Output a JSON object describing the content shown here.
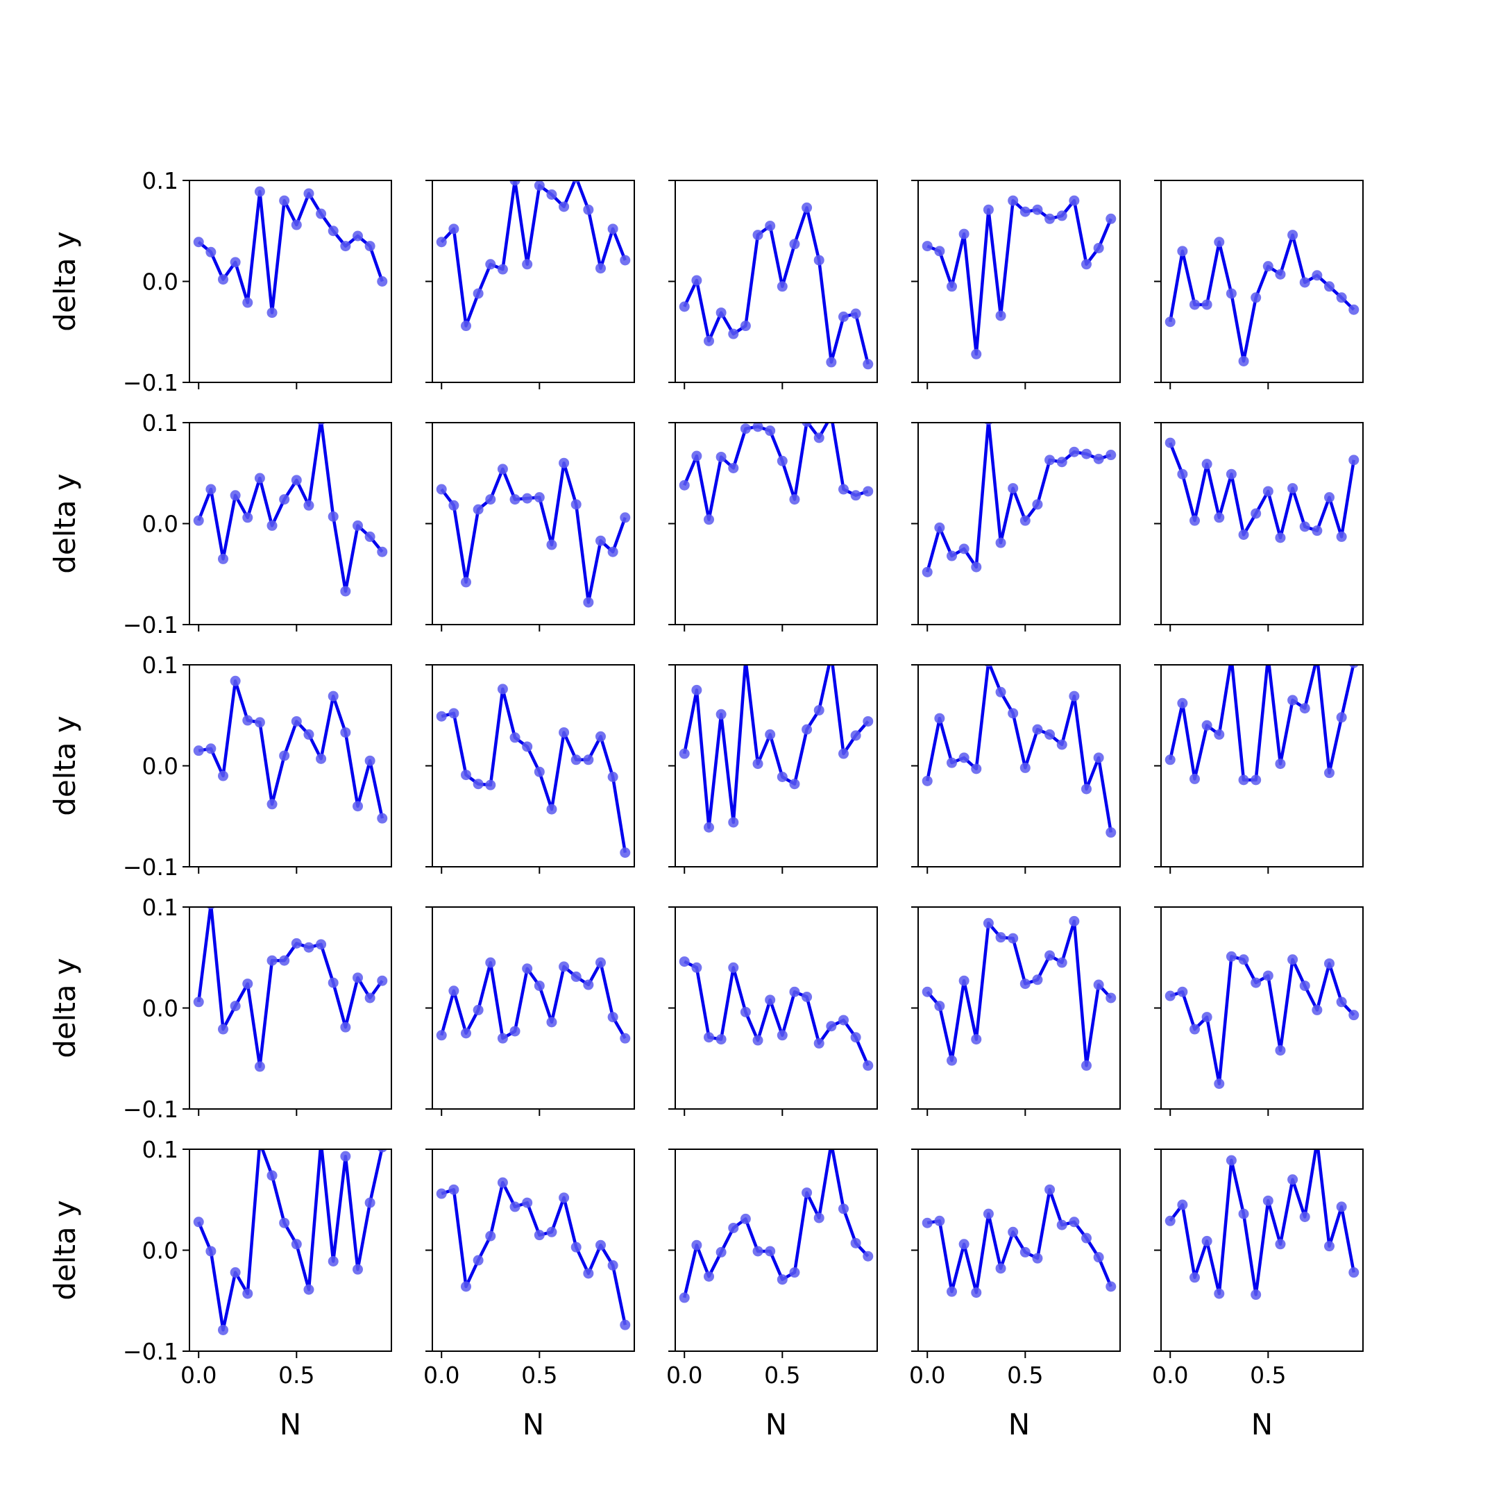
{
  "chart_data": {
    "type": "line",
    "grid": false,
    "nrows": 5,
    "ncols": 5,
    "xlabel": "N",
    "ylabel": "delta y",
    "xlim": [
      -0.0469,
      0.9844
    ],
    "ylim": [
      -0.1,
      0.1
    ],
    "xticks": [
      0.0,
      0.5
    ],
    "xtick_labels": [
      "0.0",
      "0.5"
    ],
    "yticks": [
      -0.1,
      0.0,
      0.1
    ],
    "ytick_labels": [
      "−0.1",
      "0.0",
      "0.1"
    ],
    "colors": {
      "line": "#0000ee",
      "marker": "#5a5aee"
    },
    "x": [
      0.0,
      0.0625,
      0.125,
      0.1875,
      0.25,
      0.3125,
      0.375,
      0.4375,
      0.5,
      0.5625,
      0.625,
      0.6875,
      0.75,
      0.8125,
      0.875,
      0.9375
    ],
    "panels": [
      {
        "values": [
          0.039,
          0.029,
          0.002,
          0.019,
          -0.021,
          0.089,
          -0.031,
          0.08,
          0.056,
          0.087,
          0.067,
          0.05,
          0.035,
          0.045,
          0.035,
          0.0
        ]
      },
      {
        "values": [
          0.039,
          0.052,
          -0.044,
          -0.012,
          0.017,
          0.012,
          0.1,
          0.017,
          0.095,
          0.086,
          0.074,
          0.103,
          0.071,
          0.013,
          0.052,
          0.021
        ]
      },
      {
        "values": [
          -0.025,
          0.001,
          -0.059,
          -0.031,
          -0.052,
          -0.044,
          0.046,
          0.055,
          -0.005,
          0.037,
          0.073,
          0.021,
          -0.08,
          -0.035,
          -0.032,
          -0.082
        ]
      },
      {
        "values": [
          0.035,
          0.03,
          -0.005,
          0.047,
          -0.072,
          0.071,
          -0.034,
          0.08,
          0.069,
          0.071,
          0.062,
          0.065,
          0.08,
          0.017,
          0.033,
          0.062
        ]
      },
      {
        "values": [
          -0.04,
          0.03,
          -0.023,
          -0.023,
          0.039,
          -0.012,
          -0.079,
          -0.016,
          0.015,
          0.007,
          0.046,
          -0.001,
          0.006,
          -0.005,
          -0.016,
          -0.028
        ]
      },
      {
        "values": [
          0.003,
          0.034,
          -0.035,
          0.028,
          0.006,
          0.045,
          -0.002,
          0.024,
          0.043,
          0.018,
          0.103,
          0.007,
          -0.067,
          -0.002,
          -0.013,
          -0.028
        ]
      },
      {
        "values": [
          0.034,
          0.018,
          -0.058,
          0.014,
          0.024,
          0.054,
          0.024,
          0.025,
          0.026,
          -0.021,
          0.06,
          0.019,
          -0.078,
          -0.017,
          -0.028,
          0.006
        ]
      },
      {
        "values": [
          0.038,
          0.067,
          0.004,
          0.066,
          0.055,
          0.094,
          0.096,
          0.092,
          0.062,
          0.024,
          0.101,
          0.085,
          0.107,
          0.034,
          0.028,
          0.032
        ]
      },
      {
        "values": [
          -0.048,
          -0.004,
          -0.032,
          -0.025,
          -0.043,
          0.103,
          -0.019,
          0.035,
          0.003,
          0.019,
          0.063,
          0.061,
          0.071,
          0.069,
          0.064,
          0.068
        ]
      },
      {
        "values": [
          0.08,
          0.049,
          0.003,
          0.059,
          0.006,
          0.049,
          -0.011,
          0.01,
          0.032,
          -0.014,
          0.035,
          -0.003,
          -0.007,
          0.026,
          -0.013,
          0.063
        ]
      },
      {
        "values": [
          0.015,
          0.017,
          -0.01,
          0.084,
          0.045,
          0.043,
          -0.038,
          0.01,
          0.044,
          0.031,
          0.007,
          0.069,
          0.033,
          -0.04,
          0.005,
          -0.052
        ]
      },
      {
        "values": [
          0.049,
          0.052,
          -0.009,
          -0.018,
          -0.019,
          0.076,
          0.028,
          0.019,
          -0.006,
          -0.043,
          0.033,
          0.006,
          0.006,
          0.029,
          -0.011,
          -0.086
        ]
      },
      {
        "values": [
          0.012,
          0.075,
          -0.061,
          0.051,
          -0.056,
          0.105,
          0.002,
          0.031,
          -0.011,
          -0.018,
          0.036,
          0.055,
          0.11,
          0.012,
          0.03,
          0.044
        ]
      },
      {
        "values": [
          -0.015,
          0.047,
          0.003,
          0.008,
          -0.003,
          0.103,
          0.073,
          0.052,
          -0.002,
          0.036,
          0.031,
          0.021,
          0.069,
          -0.023,
          0.008,
          -0.066
        ]
      },
      {
        "values": [
          0.006,
          0.062,
          -0.013,
          0.04,
          0.031,
          0.107,
          -0.014,
          -0.014,
          0.108,
          0.002,
          0.065,
          0.057,
          0.108,
          -0.007,
          0.048,
          0.102
        ]
      },
      {
        "values": [
          0.006,
          0.103,
          -0.021,
          0.002,
          0.024,
          -0.058,
          0.047,
          0.047,
          0.064,
          0.06,
          0.063,
          0.025,
          -0.019,
          0.03,
          0.01,
          0.027
        ]
      },
      {
        "values": [
          -0.027,
          0.017,
          -0.025,
          -0.002,
          0.045,
          -0.03,
          -0.023,
          0.039,
          0.022,
          -0.014,
          0.041,
          0.031,
          0.023,
          0.045,
          -0.009,
          -0.03
        ]
      },
      {
        "values": [
          0.046,
          0.04,
          -0.029,
          -0.031,
          0.04,
          -0.004,
          -0.032,
          0.008,
          -0.027,
          0.016,
          0.011,
          -0.035,
          -0.018,
          -0.012,
          -0.029,
          -0.057
        ]
      },
      {
        "values": [
          0.016,
          0.002,
          -0.052,
          0.027,
          -0.031,
          0.084,
          0.07,
          0.069,
          0.024,
          0.028,
          0.052,
          0.045,
          0.086,
          -0.057,
          0.023,
          0.01
        ]
      },
      {
        "values": [
          0.012,
          0.016,
          -0.021,
          -0.009,
          -0.075,
          0.051,
          0.048,
          0.025,
          0.032,
          -0.042,
          0.048,
          0.022,
          -0.002,
          0.044,
          0.006,
          -0.007
        ]
      },
      {
        "values": [
          0.028,
          -0.001,
          -0.079,
          -0.022,
          -0.043,
          0.107,
          0.074,
          0.027,
          0.006,
          -0.039,
          0.107,
          -0.011,
          0.093,
          -0.019,
          0.047,
          0.102
        ]
      },
      {
        "values": [
          0.056,
          0.06,
          -0.036,
          -0.01,
          0.014,
          0.067,
          0.043,
          0.047,
          0.015,
          0.018,
          0.052,
          0.003,
          -0.023,
          0.005,
          -0.015,
          -0.074
        ]
      },
      {
        "values": [
          -0.047,
          0.005,
          -0.026,
          -0.002,
          0.022,
          0.031,
          -0.001,
          -0.001,
          -0.029,
          -0.022,
          0.057,
          0.032,
          0.106,
          0.041,
          0.007,
          -0.006
        ]
      },
      {
        "values": [
          0.027,
          0.029,
          -0.041,
          0.006,
          -0.042,
          0.036,
          -0.018,
          0.018,
          -0.002,
          -0.008,
          0.06,
          0.025,
          0.028,
          0.012,
          -0.007,
          -0.036
        ]
      },
      {
        "values": [
          0.029,
          0.045,
          -0.027,
          0.009,
          -0.043,
          0.089,
          0.036,
          -0.044,
          0.049,
          0.006,
          0.07,
          0.033,
          0.108,
          0.004,
          0.043,
          -0.022
        ]
      }
    ]
  }
}
